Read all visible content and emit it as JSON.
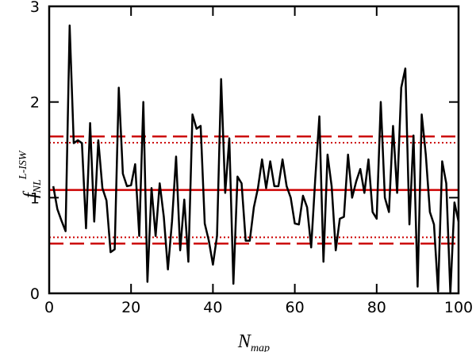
{
  "chart_data": {
    "type": "line",
    "xlabel": {
      "base": "N",
      "sub": "map"
    },
    "ylabel": {
      "base": "f",
      "sub": "NL",
      "sup": "L-ISW"
    },
    "x": [
      1,
      2,
      3,
      4,
      5,
      6,
      7,
      8,
      9,
      10,
      11,
      12,
      13,
      14,
      15,
      16,
      17,
      18,
      19,
      20,
      21,
      22,
      23,
      24,
      25,
      26,
      27,
      28,
      29,
      30,
      31,
      32,
      33,
      34,
      35,
      36,
      37,
      38,
      39,
      40,
      41,
      42,
      43,
      44,
      45,
      46,
      47,
      48,
      49,
      50,
      51,
      52,
      53,
      54,
      55,
      56,
      57,
      58,
      59,
      60,
      61,
      62,
      63,
      64,
      65,
      66,
      67,
      68,
      69,
      70,
      71,
      72,
      73,
      74,
      75,
      76,
      77,
      78,
      79,
      80,
      81,
      82,
      83,
      84,
      85,
      86,
      87,
      88,
      89,
      90,
      91,
      92,
      93,
      94,
      95,
      96,
      97,
      98,
      99,
      100
    ],
    "series": [
      {
        "color": "#000000",
        "values": [
          1.12,
          0.88,
          0.76,
          0.65,
          2.8,
          1.57,
          1.6,
          1.57,
          0.68,
          1.78,
          0.75,
          1.6,
          1.1,
          0.97,
          0.43,
          0.46,
          2.15,
          1.25,
          1.12,
          1.13,
          1.35,
          0.6,
          2.0,
          0.12,
          1.1,
          0.6,
          1.15,
          0.8,
          0.25,
          0.75,
          1.43,
          0.45,
          0.98,
          0.33,
          1.87,
          1.72,
          1.75,
          0.73,
          0.55,
          0.3,
          0.6,
          2.24,
          1.05,
          1.62,
          0.1,
          1.22,
          1.15,
          0.55,
          0.55,
          0.9,
          1.1,
          1.4,
          1.1,
          1.38,
          1.12,
          1.12,
          1.4,
          1.12,
          1.0,
          0.73,
          0.72,
          1.02,
          0.9,
          0.48,
          1.2,
          1.85,
          0.33,
          1.45,
          1.12,
          0.45,
          0.78,
          0.8,
          1.45,
          1.0,
          1.17,
          1.3,
          1.05,
          1.4,
          0.85,
          0.78,
          2.0,
          1.0,
          0.85,
          1.75,
          1.05,
          2.15,
          2.35,
          0.72,
          1.65,
          0.07,
          1.87,
          1.45,
          0.85,
          0.72,
          0.02,
          1.38,
          1.15,
          0.0,
          0.95,
          0.75
        ]
      }
    ],
    "hlines": [
      {
        "value": 1.08,
        "style": "solid",
        "color": "#cc0000"
      },
      {
        "value": 1.64,
        "style": "dashed",
        "color": "#cc0000"
      },
      {
        "value": 0.52,
        "style": "dashed",
        "color": "#cc0000"
      },
      {
        "value": 1.575,
        "style": "dotted",
        "color": "#cc0000"
      },
      {
        "value": 0.585,
        "style": "dotted",
        "color": "#cc0000"
      }
    ],
    "xlim": [
      0,
      100
    ],
    "xticks": [
      0,
      20,
      40,
      60,
      80,
      100
    ],
    "ylim": [
      0,
      3
    ],
    "yticks": [
      0,
      1,
      2,
      3
    ]
  }
}
